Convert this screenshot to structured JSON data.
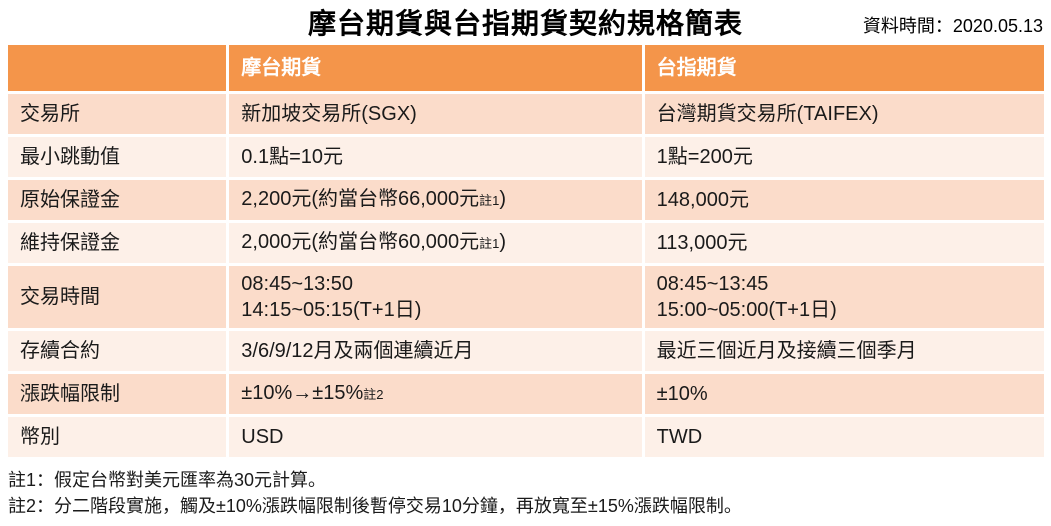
{
  "header": {
    "title": "摩台期貨與台指期貨契約規格簡表",
    "data_time": "資料時間：2020.05.13"
  },
  "table": {
    "headers": {
      "label": "",
      "msci": "摩台期貨",
      "taifex": "台指期貨"
    },
    "rows": [
      {
        "label": "交易所",
        "msci": "新加坡交易所(SGX)",
        "taifex": "台灣期貨交易所(TAIFEX)"
      },
      {
        "label": "最小跳動值",
        "msci": "0.1點=10元",
        "taifex": "1點=200元"
      },
      {
        "label": "原始保證金",
        "msci_main": "2,200元(約當台幣66,000元",
        "msci_sub": "註1",
        "msci_tail": ")",
        "taifex": "148,000元"
      },
      {
        "label": "維持保證金",
        "msci_main": "2,000元(約當台幣60,000元",
        "msci_sub": "註1",
        "msci_tail": ")",
        "taifex": "113,000元"
      },
      {
        "label": "交易時間",
        "msci_line1": "08:45~13:50",
        "msci_line2": "14:15~05:15(T+1日)",
        "taifex_line1": "08:45~13:45",
        "taifex_line2": "15:00~05:00(T+1日)"
      },
      {
        "label": "存續合約",
        "msci": "3/6/9/12月及兩個連續近月",
        "taifex": "最近三個近月及接續三個季月"
      },
      {
        "label": "漲跌幅限制",
        "msci_main": "±10%→±15%",
        "msci_sub": "註2",
        "msci_tail": "",
        "taifex": "±10%"
      },
      {
        "label": "幣別",
        "msci": "USD",
        "taifex": "TWD"
      }
    ]
  },
  "footnotes": {
    "note1": "註1：假定台幣對美元匯率為30元計算。",
    "note2": "註2：分二階段實施，觸及±10%漲跌幅限制後暫停交易10分鐘，再放寬至±15%漲跌幅限制。"
  },
  "colors": {
    "header_orange": "#f4954a",
    "band_dark": "#fbdcca",
    "band_light": "#fdf0e8",
    "header_text": "#ffffff",
    "body_text": "#1a1a1a"
  }
}
